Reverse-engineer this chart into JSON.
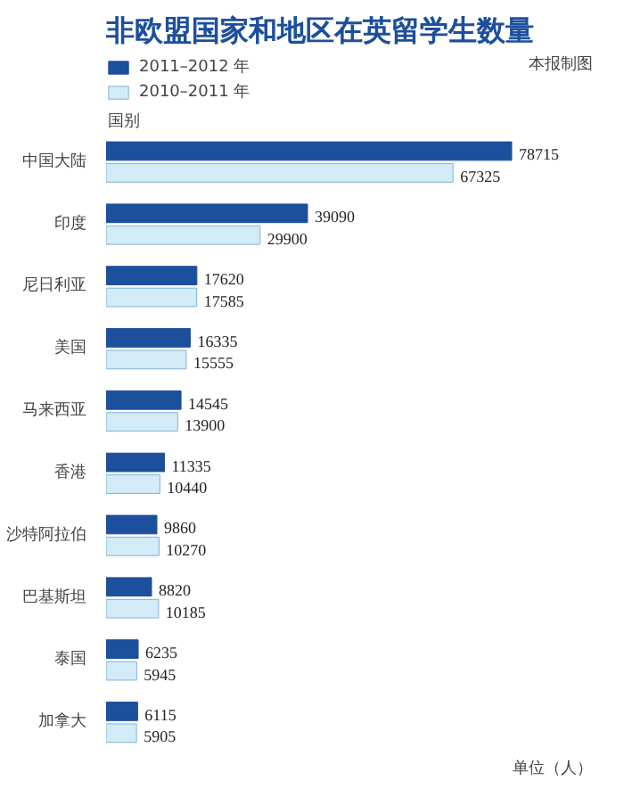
{
  "chart_data": {
    "type": "bar",
    "orientation": "horizontal",
    "title": "非欧盟国家和地区在英留学生数量",
    "ylabel": "国别",
    "annotations": [
      "本报制图",
      "单位（人）"
    ],
    "categories": [
      "中国大陆",
      "印度",
      "尼日利亚",
      "美国",
      "马来西亚",
      "香港",
      "沙特阿拉伯",
      "巴基斯坦",
      "泰国",
      "加拿大"
    ],
    "series": [
      {
        "name": "2011–2012 年",
        "color": "#1c4f9c",
        "values": [
          78715,
          39090,
          17620,
          16335,
          14545,
          11335,
          9860,
          8820,
          6235,
          6115
        ]
      },
      {
        "name": "2010–2011 年",
        "color": "#d3ebf7",
        "values": [
          67325,
          29900,
          17585,
          15555,
          13900,
          10440,
          10270,
          10185,
          5945,
          5905
        ]
      }
    ],
    "data_labels": true,
    "legend": "top left",
    "tick_labels": "y",
    "grid": false
  }
}
